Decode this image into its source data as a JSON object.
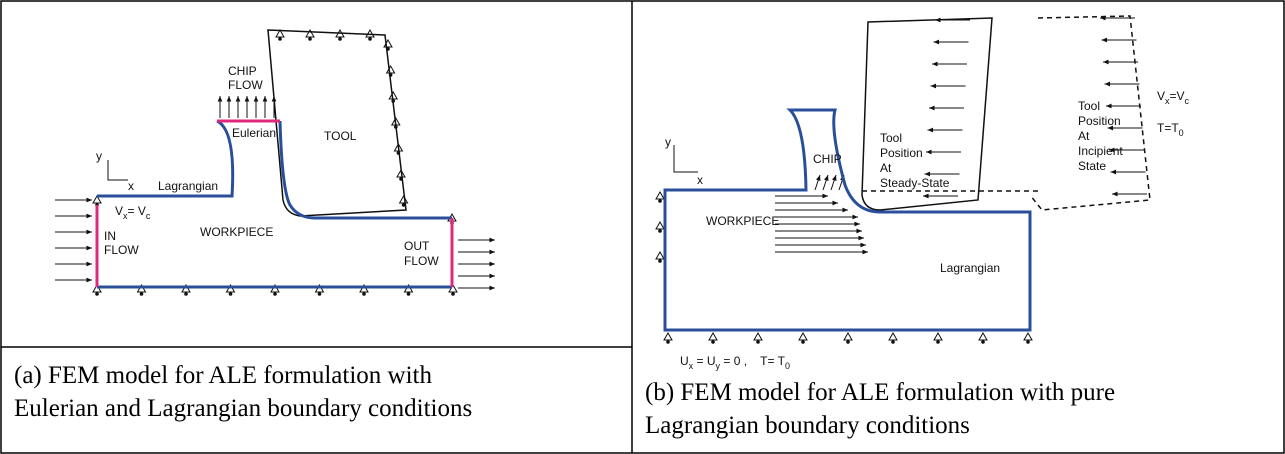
{
  "panel_a": {
    "chip_flow": [
      "CHIP",
      "FLOW"
    ],
    "eulerian": "Eulerian",
    "tool": "TOOL",
    "axis_y": "y",
    "axis_x": "x",
    "lagrangian": "Lagrangian",
    "velocity": {
      "base": "V",
      "sub": "x",
      "eq": "= V",
      "sub2": "c"
    },
    "in_flow": [
      "IN",
      "FLOW"
    ],
    "workpiece": "WORKPIECE",
    "out_flow": [
      "OUT",
      "FLOW"
    ],
    "caption": [
      "(a) FEM model for ALE formulation with",
      "Eulerian and Lagrangian boundary conditions"
    ]
  },
  "panel_b": {
    "axis_y": "y",
    "axis_x": "x",
    "chip": "CHIP",
    "tool_steady": [
      "Tool",
      "Position",
      "At",
      "Steady-State"
    ],
    "tool_incipient": [
      "Tool",
      "Position",
      "At",
      "Incipient",
      "State"
    ],
    "velocity": {
      "base": "V",
      "sub": "x",
      "eq": "=V",
      "sub2": "c"
    },
    "temp": {
      "base": "T=T",
      "sub": "0"
    },
    "workpiece": "WORKPIECE",
    "lagrangian": "Lagrangian",
    "bc": {
      "u1": "U",
      "s1": "x",
      "eq": " = U",
      "s2": "y",
      "rest": " = 0 ,    T= T",
      "s3": "0"
    },
    "caption": [
      "(b) FEM model for ALE formulation with pure",
      "Lagrangian boundary conditions"
    ]
  }
}
